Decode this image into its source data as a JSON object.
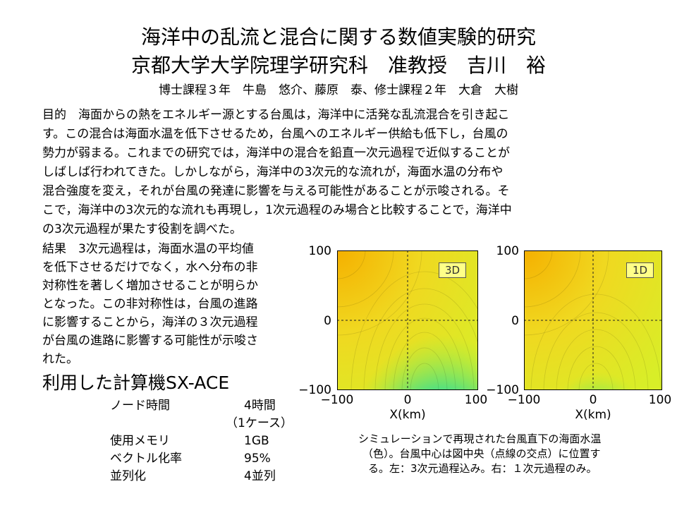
{
  "title": {
    "line1": "海洋中の乱流と混合に関する数値実験的研究",
    "line2": "京都大学大学院理学研究科　准教授　吉川　裕",
    "authors": "博士課程３年　牛島　悠介、藤原　泰、修士課程２年　大倉　大樹"
  },
  "purpose": {
    "lines": [
      "目的　海面からの熱をエネルギー源とする台風は，海洋中に活発な乱流混合を引き起こ",
      "す。この混合は海面水温を低下させるため，台風へのエネルギー供給も低下し，台風の",
      "勢力が弱まる。これまでの研究では，海洋中の混合を鉛直一次元過程で近似することが",
      "しばしば行われてきた。しかしながら，海洋中の3次元的な流れが，海面水温の分布や",
      "混合強度を変え，それが台風の発達に影響を与える可能性があることが示唆される。そ",
      "こで，海洋中の3次元的な流れも再現し，1次元過程のみ場合と比較することで，海洋中",
      "の3次元過程が果たす役割を調べた。"
    ]
  },
  "result": {
    "lines": [
      "結果　3次元過程は，海面水温の平均値",
      "を低下させるだけでなく，水へ分布の非",
      "対称性を著しく増加させることが明らか",
      "となった。この非対称性は，台風の進路",
      "に影響することから，海洋の３次元過程",
      "が台風の進路に影響する可能性が示唆さ",
      "れた。"
    ]
  },
  "computer": {
    "heading": "利用した計算機SX-ACE",
    "rows": [
      {
        "label": "ノード時間",
        "value": "4時間",
        "value2": "（1ケース）"
      },
      {
        "label": "使用メモリ",
        "value": "1GB"
      },
      {
        "label": "ベクトル化率",
        "value": "95%"
      },
      {
        "label": "並列化",
        "value": "4並列"
      }
    ]
  },
  "figure": {
    "panels": [
      {
        "tag": "3D",
        "y_ticks": [
          "100",
          "0",
          "−100"
        ],
        "x_ticks": [
          "−100",
          "0",
          "100"
        ],
        "xlabel": "X(km)"
      },
      {
        "tag": "1D",
        "y_ticks": [
          "100",
          "0",
          "−100"
        ],
        "x_ticks": [
          "−100",
          "0",
          "100"
        ],
        "xlabel": "X(km)"
      }
    ],
    "caption": [
      "シミュレーションで再現された台風直下の海面水温",
      "（色）。台風中心は図中央（点線の交点）に位置す",
      "る。左：3次元過程込み。右：１次元過程のみ。"
    ],
    "colors": {
      "warm": "#f5b800",
      "mid": "#d8ee28",
      "green": "#50e080",
      "cyan": "#10c8e8",
      "blue": "#0838d0",
      "deep": "#0010a0"
    }
  }
}
